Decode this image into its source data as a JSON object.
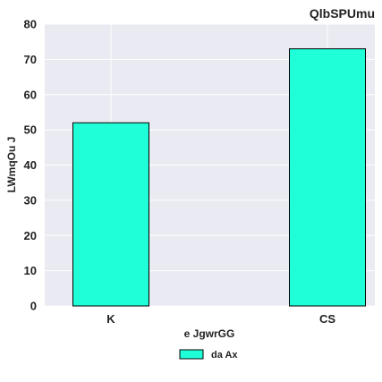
{
  "chart_data": {
    "type": "bar",
    "title": "QlbSPUmu",
    "xlabel": "e JgwrGG",
    "ylabel": "LWmqOu J",
    "categories": [
      "K",
      "CS"
    ],
    "series": [
      {
        "name": "da Ax",
        "values": [
          52,
          73
        ]
      }
    ],
    "ylim": [
      0,
      80
    ],
    "yticks": [
      0,
      10,
      20,
      30,
      40,
      50,
      60,
      70,
      80
    ],
    "grid": true,
    "legend": "bottom-center",
    "colors": {
      "bar_fill": "#1fffd8",
      "bar_stroke": "#000000",
      "plot_background": "#eaeaf2",
      "grid": "#ffffff"
    }
  }
}
